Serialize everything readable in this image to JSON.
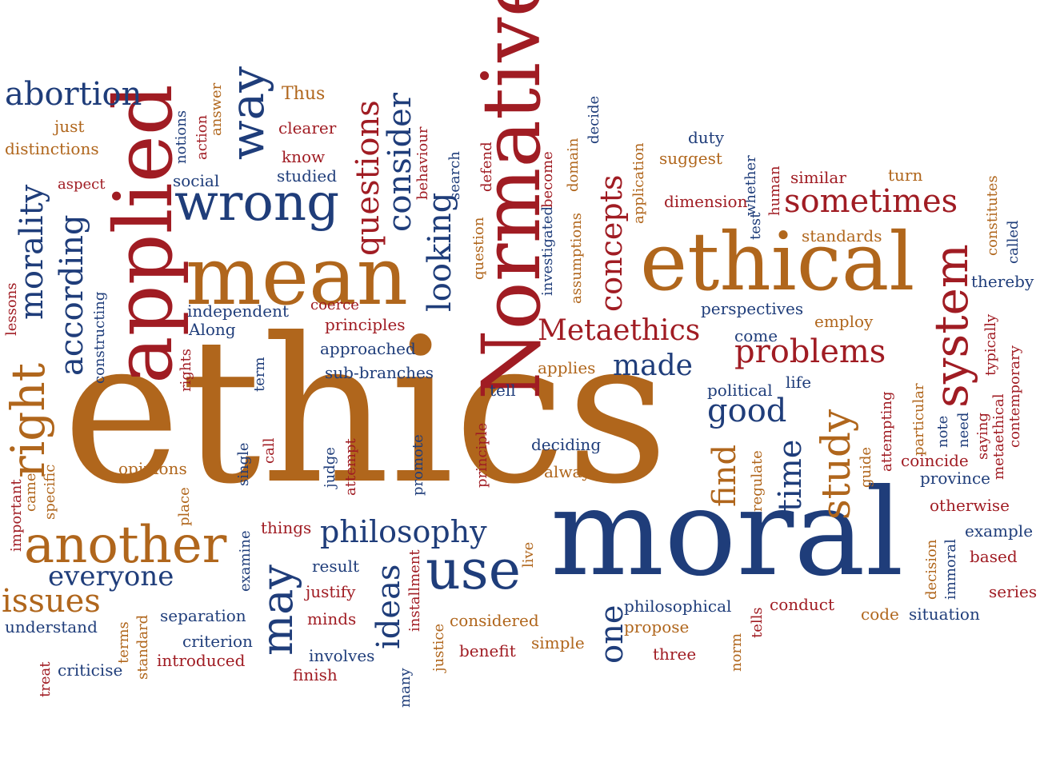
{
  "colors": {
    "blue": "#1f3d7a",
    "orange": "#b0661c",
    "red": "#a01c23"
  },
  "words": [
    {
      "text": "ethics",
      "color": "orange"
    },
    {
      "text": "moral",
      "color": "blue"
    },
    {
      "text": "ethical",
      "color": "orange"
    },
    {
      "text": "mean",
      "color": "orange"
    },
    {
      "text": "Normative",
      "color": "red"
    },
    {
      "text": "applied",
      "color": "red"
    },
    {
      "text": "wrong",
      "color": "blue"
    },
    {
      "text": "another",
      "color": "orange"
    },
    {
      "text": "use",
      "color": "blue"
    },
    {
      "text": "abortion",
      "color": "blue"
    },
    {
      "text": "way",
      "color": "blue"
    },
    {
      "text": "sometimes",
      "color": "red"
    },
    {
      "text": "system",
      "color": "red"
    },
    {
      "text": "right",
      "color": "orange"
    },
    {
      "text": "morality",
      "color": "blue"
    },
    {
      "text": "according",
      "color": "blue"
    },
    {
      "text": "questions",
      "color": "red"
    },
    {
      "text": "consider",
      "color": "blue"
    },
    {
      "text": "looking",
      "color": "blue"
    },
    {
      "text": "concepts",
      "color": "red"
    },
    {
      "text": "Metaethics",
      "color": "red"
    },
    {
      "text": "problems",
      "color": "red"
    },
    {
      "text": "made",
      "color": "blue"
    },
    {
      "text": "good",
      "color": "blue"
    },
    {
      "text": "study",
      "color": "orange"
    },
    {
      "text": "time",
      "color": "blue"
    },
    {
      "text": "find",
      "color": "orange"
    },
    {
      "text": "philosophy",
      "color": "blue"
    },
    {
      "text": "everyone",
      "color": "blue"
    },
    {
      "text": "issues",
      "color": "orange"
    },
    {
      "text": "may",
      "color": "blue"
    },
    {
      "text": "ideas",
      "color": "blue"
    },
    {
      "text": "one",
      "color": "blue"
    },
    {
      "text": "Thus",
      "color": "orange"
    },
    {
      "text": "just",
      "color": "orange"
    },
    {
      "text": "distinctions",
      "color": "orange"
    },
    {
      "text": "aspect",
      "color": "red"
    },
    {
      "text": "clearer",
      "color": "red"
    },
    {
      "text": "know",
      "color": "red"
    },
    {
      "text": "studied",
      "color": "blue"
    },
    {
      "text": "social",
      "color": "blue"
    },
    {
      "text": "notions",
      "color": "blue"
    },
    {
      "text": "action",
      "color": "red"
    },
    {
      "text": "answer",
      "color": "orange"
    },
    {
      "text": "behaviour",
      "color": "red"
    },
    {
      "text": "search",
      "color": "blue"
    },
    {
      "text": "question",
      "color": "orange"
    },
    {
      "text": "defend",
      "color": "red"
    },
    {
      "text": "investigated",
      "color": "blue"
    },
    {
      "text": "become",
      "color": "red"
    },
    {
      "text": "assumptions",
      "color": "orange"
    },
    {
      "text": "domain",
      "color": "orange"
    },
    {
      "text": "decide",
      "color": "blue"
    },
    {
      "text": "application",
      "color": "orange"
    },
    {
      "text": "duty",
      "color": "blue"
    },
    {
      "text": "suggest",
      "color": "orange"
    },
    {
      "text": "whether",
      "color": "blue"
    },
    {
      "text": "test",
      "color": "blue"
    },
    {
      "text": "human",
      "color": "red"
    },
    {
      "text": "dimension",
      "color": "red"
    },
    {
      "text": "similar",
      "color": "red"
    },
    {
      "text": "turn",
      "color": "orange"
    },
    {
      "text": "standards",
      "color": "orange"
    },
    {
      "text": "constitutes",
      "color": "orange"
    },
    {
      "text": "called",
      "color": "blue"
    },
    {
      "text": "thereby",
      "color": "blue"
    },
    {
      "text": "lessons",
      "color": "red"
    },
    {
      "text": "constructing",
      "color": "blue"
    },
    {
      "text": "independent",
      "color": "blue"
    },
    {
      "text": "Along",
      "color": "blue"
    },
    {
      "text": "coerce",
      "color": "red"
    },
    {
      "text": "principles",
      "color": "red"
    },
    {
      "text": "approached",
      "color": "blue"
    },
    {
      "text": "sub-branches",
      "color": "blue"
    },
    {
      "text": "perspectives",
      "color": "blue"
    },
    {
      "text": "come",
      "color": "blue"
    },
    {
      "text": "employ",
      "color": "orange"
    },
    {
      "text": "typically",
      "color": "red"
    },
    {
      "text": "contemporary",
      "color": "red"
    },
    {
      "text": "applies",
      "color": "orange"
    },
    {
      "text": "tell",
      "color": "blue"
    },
    {
      "text": "political",
      "color": "blue"
    },
    {
      "text": "life",
      "color": "blue"
    },
    {
      "text": "rights",
      "color": "red"
    },
    {
      "text": "term",
      "color": "blue"
    },
    {
      "text": "principle",
      "color": "red"
    },
    {
      "text": "deciding",
      "color": "blue"
    },
    {
      "text": "always",
      "color": "orange"
    },
    {
      "text": "regulate",
      "color": "orange"
    },
    {
      "text": "attempting",
      "color": "red"
    },
    {
      "text": "particular",
      "color": "orange"
    },
    {
      "text": "note",
      "color": "blue"
    },
    {
      "text": "need",
      "color": "blue"
    },
    {
      "text": "saying",
      "color": "red"
    },
    {
      "text": "metaethical",
      "color": "red"
    },
    {
      "text": "guide",
      "color": "orange"
    },
    {
      "text": "coincide",
      "color": "red"
    },
    {
      "text": "province",
      "color": "blue"
    },
    {
      "text": "otherwise",
      "color": "red"
    },
    {
      "text": "opinions",
      "color": "orange"
    },
    {
      "text": "came",
      "color": "orange"
    },
    {
      "text": "specific",
      "color": "orange"
    },
    {
      "text": "important",
      "color": "red"
    },
    {
      "text": "place",
      "color": "orange"
    },
    {
      "text": "single",
      "color": "blue"
    },
    {
      "text": "call",
      "color": "red"
    },
    {
      "text": "judge",
      "color": "blue"
    },
    {
      "text": "attempt",
      "color": "red"
    },
    {
      "text": "promote",
      "color": "blue"
    },
    {
      "text": "things",
      "color": "red"
    },
    {
      "text": "examine",
      "color": "blue"
    },
    {
      "text": "result",
      "color": "blue"
    },
    {
      "text": "justify",
      "color": "red"
    },
    {
      "text": "minds",
      "color": "red"
    },
    {
      "text": "installment",
      "color": "red"
    },
    {
      "text": "live",
      "color": "orange"
    },
    {
      "text": "considered",
      "color": "orange"
    },
    {
      "text": "justice",
      "color": "orange"
    },
    {
      "text": "involves",
      "color": "blue"
    },
    {
      "text": "finish",
      "color": "red"
    },
    {
      "text": "many",
      "color": "blue"
    },
    {
      "text": "benefit",
      "color": "red"
    },
    {
      "text": "simple",
      "color": "orange"
    },
    {
      "text": "philosophical",
      "color": "blue"
    },
    {
      "text": "propose",
      "color": "orange"
    },
    {
      "text": "three",
      "color": "red"
    },
    {
      "text": "norm",
      "color": "orange"
    },
    {
      "text": "tells",
      "color": "red"
    },
    {
      "text": "conduct",
      "color": "red"
    },
    {
      "text": "code",
      "color": "orange"
    },
    {
      "text": "situation",
      "color": "blue"
    },
    {
      "text": "immoral",
      "color": "blue"
    },
    {
      "text": "decision",
      "color": "orange"
    },
    {
      "text": "example",
      "color": "blue"
    },
    {
      "text": "based",
      "color": "red"
    },
    {
      "text": "series",
      "color": "red"
    },
    {
      "text": "understand",
      "color": "blue"
    },
    {
      "text": "separation",
      "color": "blue"
    },
    {
      "text": "criterion",
      "color": "blue"
    },
    {
      "text": "introduced",
      "color": "red"
    },
    {
      "text": "criticise",
      "color": "blue"
    },
    {
      "text": "terms",
      "color": "orange"
    },
    {
      "text": "standard",
      "color": "orange"
    },
    {
      "text": "treat",
      "color": "red"
    }
  ]
}
